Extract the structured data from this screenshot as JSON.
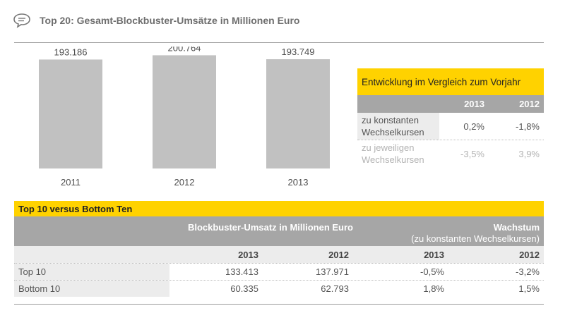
{
  "header": {
    "title": "Top 20: Gesamt-Blockbuster-Umsätze in Millionen Euro",
    "icon": "speech-bubble-icon"
  },
  "chart_data": {
    "type": "bar",
    "categories": [
      "2011",
      "2012",
      "2013"
    ],
    "values": [
      193186,
      200764,
      193749
    ],
    "value_labels": [
      "193.186",
      "200.764",
      "193.749"
    ],
    "title": "Top 20: Gesamt-Blockbuster-Umsätze in Millionen Euro",
    "xlabel": "",
    "ylabel": "",
    "ylim": [
      0,
      220000
    ],
    "grid": false,
    "bar_color": "#c1c1c1"
  },
  "development": {
    "title": "Entwicklung im Vergleich zum Vorjahr",
    "years": [
      "2013",
      "2012"
    ],
    "rows": [
      {
        "label_line1": "zu konstanten",
        "label_line2": "Wechselkursen",
        "v2013": "0,2%",
        "v2012": "-1,8%"
      },
      {
        "label_line1": "zu jeweiligen",
        "label_line2": "Wechselkursen",
        "v2013": "-3,5%",
        "v2012": "3,9%"
      }
    ]
  },
  "top_bottom": {
    "title": "Top 10 versus Bottom Ten",
    "umsatz_header": "Blockbuster-Umsatz in Millionen Euro",
    "wachstum_header": "Wachstum",
    "wachstum_sub": "(zu konstanten Wechselkursen)",
    "years": [
      "2013",
      "2012",
      "2013",
      "2012"
    ],
    "rows": [
      {
        "label": "Top 10",
        "u2013": "133.413",
        "u2012": "137.971",
        "w2013": "-0,5%",
        "w2012": "-3,2%"
      },
      {
        "label": "Bottom 10",
        "u2013": "60.335",
        "u2012": "62.793",
        "w2013": "1,8%",
        "w2012": "1,5%"
      }
    ]
  },
  "colors": {
    "accent": "#ffd200",
    "header_grey": "#a6a6a6",
    "light_grey": "#ececec",
    "bar": "#c1c1c1"
  }
}
